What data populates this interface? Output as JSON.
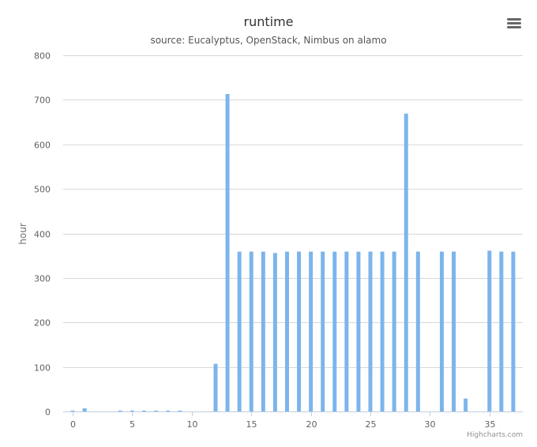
{
  "chart_data": {
    "type": "bar",
    "title": "runtime",
    "subtitle": "source: Eucalyptus, OpenStack, Nimbus on alamo",
    "xlabel": "",
    "ylabel": "hour",
    "x": [
      0,
      1,
      2,
      3,
      4,
      5,
      6,
      7,
      8,
      9,
      10,
      11,
      12,
      13,
      14,
      15,
      16,
      17,
      18,
      19,
      20,
      21,
      22,
      23,
      24,
      25,
      26,
      27,
      28,
      29,
      30,
      31,
      32,
      33,
      34,
      35,
      36,
      37
    ],
    "values": [
      2,
      7,
      0,
      0,
      2,
      2,
      2,
      2,
      2,
      2,
      0,
      0,
      107,
      713,
      359,
      359,
      359,
      356,
      359,
      359,
      359,
      359,
      359,
      359,
      359,
      359,
      359,
      359,
      669,
      359,
      0,
      359,
      359,
      29,
      0,
      361,
      359,
      359
    ],
    "xlim": [
      -0.8,
      37.8
    ],
    "ylim": [
      0,
      800
    ],
    "xticks": [
      0,
      5,
      10,
      15,
      20,
      25,
      30,
      35
    ],
    "yticks": [
      0,
      100,
      200,
      300,
      400,
      500,
      600,
      700,
      800
    ],
    "grid": true,
    "legend": "none",
    "bar_color": "#7cb5ec",
    "grid_color": "#d8d8d8",
    "axis_color": "#c0d0e0"
  },
  "credits": "Highcharts.com",
  "menu_icon": "hamburger-menu-icon"
}
